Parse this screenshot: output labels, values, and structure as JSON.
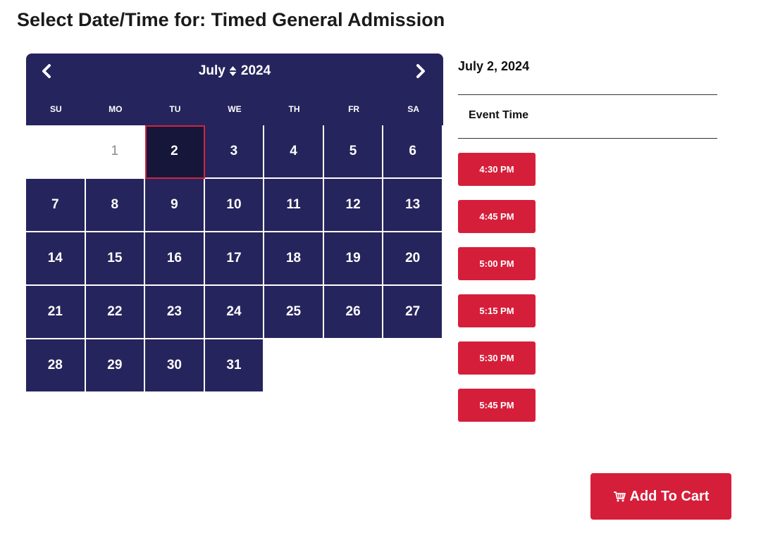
{
  "page": {
    "title": "Select Date/Time for: Timed General Admission"
  },
  "calendar": {
    "month": "July",
    "year": "2024",
    "weekdays": [
      "SU",
      "MO",
      "TU",
      "WE",
      "TH",
      "FR",
      "SA"
    ],
    "selected_day": "2",
    "days": [
      "1",
      "2",
      "3",
      "4",
      "5",
      "6",
      "7",
      "8",
      "9",
      "10",
      "11",
      "12",
      "13",
      "14",
      "15",
      "16",
      "17",
      "18",
      "19",
      "20",
      "21",
      "22",
      "23",
      "24",
      "25",
      "26",
      "27",
      "28",
      "29",
      "30",
      "31"
    ],
    "icons": {
      "prev": "chevron-left-icon",
      "next": "chevron-right-icon",
      "month_select": "sort-icon"
    }
  },
  "panel": {
    "selected_date": "July 2, 2024",
    "event_time_label": "Event Time",
    "times": [
      "4:30 PM",
      "4:45 PM",
      "5:00 PM",
      "5:15 PM",
      "5:30 PM",
      "5:45 PM"
    ]
  },
  "cart": {
    "label": "Add To Cart",
    "icon": "cart-icon"
  },
  "colors": {
    "calendar_bg": "#26245c",
    "selected_day_bg": "#16163a",
    "selected_day_border": "#d0263c",
    "accent_red": "#d51f3a",
    "disabled_day_text": "#8a8a8a"
  }
}
